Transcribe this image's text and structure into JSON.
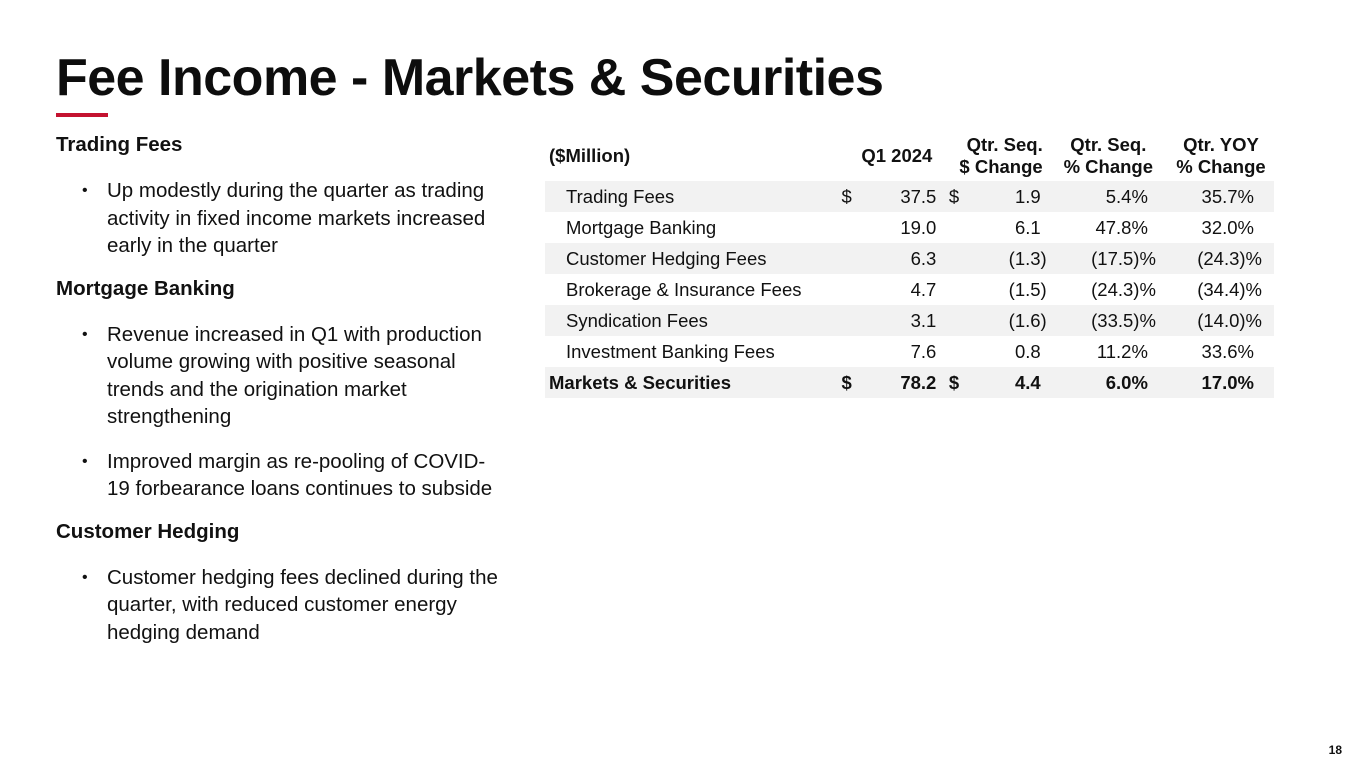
{
  "slide": {
    "title": "Fee Income - Markets & Securities",
    "page_number": "18",
    "accent_color": "#c41230"
  },
  "commentary": [
    {
      "heading": "Trading Fees",
      "bullets": [
        "Up modestly during the quarter as trading activity in fixed income markets increased early in the quarter"
      ]
    },
    {
      "heading": "Mortgage Banking",
      "bullets": [
        "Revenue increased in Q1 with production volume growing with positive seasonal trends and the origination market strengthening",
        "Improved margin as re-pooling of COVID-19 forbearance loans continues to subside"
      ]
    },
    {
      "heading": "Customer Hedging",
      "bullets": [
        "Customer hedging fees declined during the quarter, with reduced customer energy hedging demand"
      ]
    }
  ],
  "table": {
    "headers": {
      "label": "($Million)",
      "q1": "Q1 2024",
      "seq_dollar_l1": "Qtr. Seq.",
      "seq_dollar_l2": "$ Change",
      "seq_pct_l1": "Qtr. Seq.",
      "seq_pct_l2": "% Change",
      "yoy_l1": "Qtr. YOY",
      "yoy_l2": "% Change"
    },
    "rows": [
      {
        "label": "Trading Fees",
        "cur1": "$",
        "q1": "37.5",
        "cur2": "$",
        "seq_dollar": "1.9",
        "seq_pct": "5.4%",
        "yoy": "35.7%"
      },
      {
        "label": "Mortgage Banking",
        "cur1": "",
        "q1": "19.0",
        "cur2": "",
        "seq_dollar": "6.1",
        "seq_pct": "47.8%",
        "yoy": "32.0%"
      },
      {
        "label": "Customer Hedging Fees",
        "cur1": "",
        "q1": "6.3",
        "cur2": "",
        "seq_dollar": "(1.3)",
        "seq_pct": "(17.5)%",
        "yoy": "(24.3)%"
      },
      {
        "label": "Brokerage & Insurance Fees",
        "cur1": "",
        "q1": "4.7",
        "cur2": "",
        "seq_dollar": "(1.5)",
        "seq_pct": "(24.3)%",
        "yoy": "(34.4)%"
      },
      {
        "label": "Syndication Fees",
        "cur1": "",
        "q1": "3.1",
        "cur2": "",
        "seq_dollar": "(1.6)",
        "seq_pct": "(33.5)%",
        "yoy": "(14.0)%"
      },
      {
        "label": "Investment Banking Fees",
        "cur1": "",
        "q1": "7.6",
        "cur2": "",
        "seq_dollar": "0.8",
        "seq_pct": "11.2%",
        "yoy": "33.6%"
      }
    ],
    "total": {
      "label": "Markets & Securities",
      "cur1": "$",
      "q1": "78.2",
      "cur2": "$",
      "seq_dollar": "4.4",
      "seq_pct": "6.0%",
      "yoy": "17.0%"
    }
  }
}
